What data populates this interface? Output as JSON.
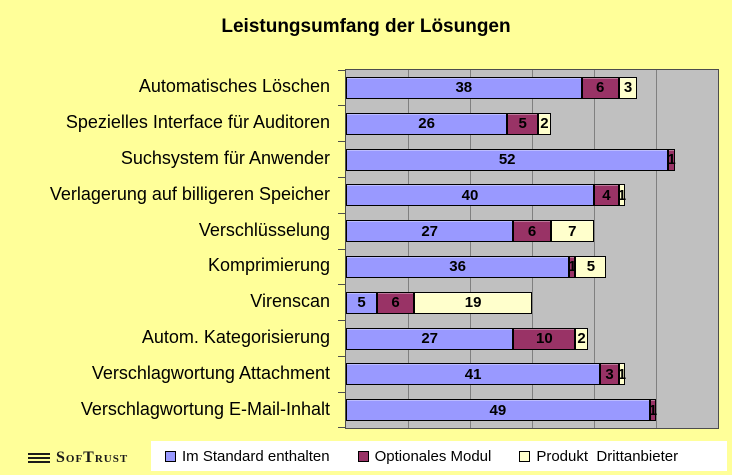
{
  "title": "Leistungsumfang der Lösungen",
  "logo": {
    "text": "SofTrust"
  },
  "colors": {
    "background": "#FFFF99",
    "plot_background": "#C0C0C0",
    "gridline": "#808080",
    "series_standard": "#9999FF",
    "series_optional": "#993366",
    "series_thirdparty": "#FFFFCC",
    "legend_background": "#FFFFFF"
  },
  "chart_data": {
    "type": "bar",
    "orientation": "horizontal",
    "stacked": true,
    "title": "Leistungsumfang der Lösungen",
    "xlabel": "",
    "ylabel": "",
    "xlim": [
      0,
      60
    ],
    "gridline_interval": 10,
    "grid": true,
    "data_labels": true,
    "legend_position": "bottom",
    "categories": [
      "Automatisches Löschen",
      "Spezielles Interface für Auditoren",
      "Suchsystem für Anwender",
      "Verlagerung auf billigeren Speicher",
      "Verschlüsselung",
      "Komprimierung",
      "Virenscan",
      "Autom. Kategorisierung",
      "Verschlagwortung Attachment",
      "Verschlagwortung E-Mail-Inhalt"
    ],
    "series": [
      {
        "name": "Im Standard enthalten",
        "color": "#9999FF",
        "values": [
          38,
          26,
          52,
          40,
          27,
          36,
          5,
          27,
          41,
          49
        ]
      },
      {
        "name": "Optionales Modul",
        "color": "#993366",
        "values": [
          6,
          5,
          1,
          4,
          6,
          1,
          6,
          10,
          3,
          1
        ]
      },
      {
        "name": "Produkt  Drittanbieter",
        "color": "#FFFFCC",
        "values": [
          3,
          2,
          0,
          1,
          7,
          5,
          19,
          2,
          1,
          0
        ]
      }
    ]
  }
}
